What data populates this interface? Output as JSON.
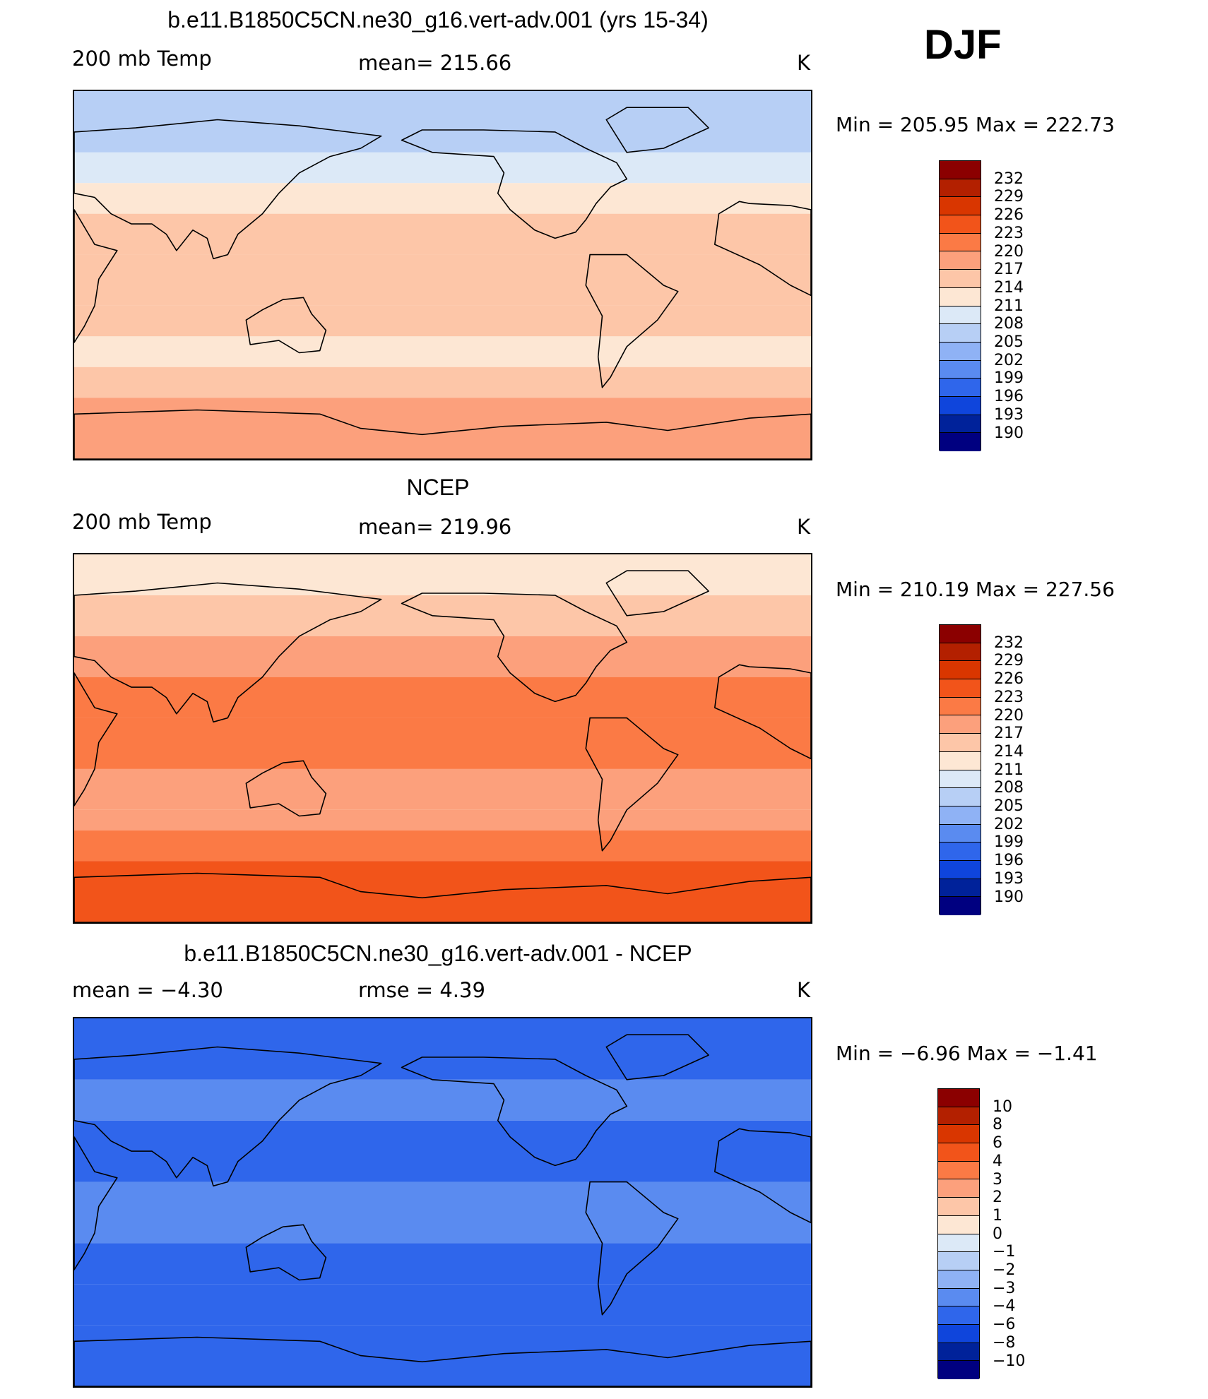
{
  "season": "DJF",
  "chart_data": [
    {
      "type": "heatmap",
      "title": "b.e11.B1850C5CN.ne30_g16.vert-adv.001 (yrs 15-34)",
      "left_label": "200 mb Temp",
      "center_label": "mean=  215.66",
      "units": "K",
      "min": 205.95,
      "max": 222.73,
      "minmax_text": "Min  =  205.95  Max  =  222.73",
      "colorbar_labels": [
        "232",
        "229",
        "226",
        "223",
        "220",
        "217",
        "214",
        "211",
        "208",
        "205",
        "202",
        "199",
        "196",
        "193",
        "190"
      ],
      "latitude_bands": [
        {
          "lat_from": 90,
          "lat_to": 60,
          "value": 207
        },
        {
          "lat_from": 60,
          "lat_to": 45,
          "value": 210
        },
        {
          "lat_from": 45,
          "lat_to": 30,
          "value": 213
        },
        {
          "lat_from": 30,
          "lat_to": 10,
          "value": 216
        },
        {
          "lat_from": 10,
          "lat_to": -15,
          "value": 216
        },
        {
          "lat_from": -15,
          "lat_to": -30,
          "value": 215
        },
        {
          "lat_from": -30,
          "lat_to": -45,
          "value": 213
        },
        {
          "lat_from": -45,
          "lat_to": -60,
          "value": 216
        },
        {
          "lat_from": -60,
          "lat_to": -90,
          "value": 219
        }
      ]
    },
    {
      "type": "heatmap",
      "title": "NCEP",
      "left_label": "200 mb Temp",
      "center_label": "mean=  219.96",
      "units": "K",
      "min": 210.19,
      "max": 227.56,
      "minmax_text": "Min  =  210.19  Max  =  227.56",
      "colorbar_labels": [
        "232",
        "229",
        "226",
        "223",
        "220",
        "217",
        "214",
        "211",
        "208",
        "205",
        "202",
        "199",
        "196",
        "193",
        "190"
      ],
      "latitude_bands": [
        {
          "lat_from": 90,
          "lat_to": 70,
          "value": 211
        },
        {
          "lat_from": 70,
          "lat_to": 50,
          "value": 214
        },
        {
          "lat_from": 50,
          "lat_to": 30,
          "value": 217
        },
        {
          "lat_from": 30,
          "lat_to": 10,
          "value": 220
        },
        {
          "lat_from": 10,
          "lat_to": -15,
          "value": 221
        },
        {
          "lat_from": -15,
          "lat_to": -35,
          "value": 219
        },
        {
          "lat_from": -35,
          "lat_to": -45,
          "value": 217
        },
        {
          "lat_from": -45,
          "lat_to": -60,
          "value": 222
        },
        {
          "lat_from": -60,
          "lat_to": -90,
          "value": 224
        }
      ]
    },
    {
      "type": "heatmap",
      "title": "b.e11.B1850C5CN.ne30_g16.vert-adv.001 - NCEP",
      "left_label": "mean  =    −4.30",
      "center_label": "rmse  =     4.39",
      "units": "K",
      "min": -6.96,
      "max": -1.41,
      "minmax_text": "Min  =    −6.96  Max  =    −1.41",
      "colorbar_labels": [
        "10",
        "8",
        "6",
        "4",
        "3",
        "2",
        "1",
        "0",
        "−1",
        "−2",
        "−3",
        "−4",
        "−6",
        "−8",
        "−10"
      ],
      "latitude_bands": [
        {
          "lat_from": 90,
          "lat_to": 60,
          "value": -4.5
        },
        {
          "lat_from": 60,
          "lat_to": 40,
          "value": -3.5
        },
        {
          "lat_from": 40,
          "lat_to": 10,
          "value": -4.2
        },
        {
          "lat_from": 10,
          "lat_to": -20,
          "value": -3.8
        },
        {
          "lat_from": -20,
          "lat_to": -40,
          "value": -4.5
        },
        {
          "lat_from": -40,
          "lat_to": -60,
          "value": -5.0
        },
        {
          "lat_from": -60,
          "lat_to": -90,
          "value": -4.5
        }
      ]
    }
  ],
  "colors": {
    "scale": [
      "#8b0000",
      "#b32000",
      "#d93600",
      "#f2541a",
      "#fb7a45",
      "#fca07c",
      "#fdc6a8",
      "#fde7d4",
      "#dce9f7",
      "#b7cff5",
      "#8fb2f5",
      "#5a8bf0",
      "#2f66eb",
      "#0f45dc",
      "#00229a",
      "#000080"
    ]
  }
}
